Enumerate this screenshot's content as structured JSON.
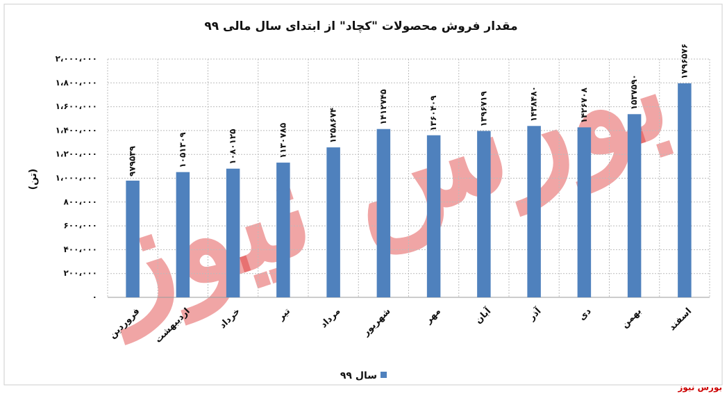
{
  "chart_data": {
    "type": "bar",
    "title": "مقدار فروش محصولات \"کچاد\" از ابتدای سال مالی ۹۹",
    "y_label": "(تن)",
    "categories": [
      "فروردین",
      "اردیبهشت",
      "خرداد",
      "تیر",
      "مرداد",
      "شهریور",
      "مهر",
      "آبان",
      "آذر",
      "دی",
      "بهمن",
      "اسفند"
    ],
    "series": [
      {
        "name": "سال ۹۹",
        "color": "#4f81bd",
        "values": [
          979539,
          1051309,
          1080125,
          1130785,
          1258674,
          1412745,
          1360409,
          1396719,
          1438480,
          1426708,
          1537590,
          1796576
        ],
        "value_labels": [
          "۹۷۹۵۳۹",
          "۱۰۵۱۳۰۹",
          "۱۰۸۰۱۲۵",
          "۱۱۳۰۷۸۵",
          "۱۲۵۸۶۷۴",
          "۱۴۱۲۷۴۵",
          "۱۳۶۰۴۰۹",
          "۱۳۹۶۷۱۹",
          "۱۴۳۸۴۸۰",
          "۱۴۲۶۷۰۸",
          "۱۵۳۷۵۹۰",
          "۱۷۹۶۵۷۶"
        ]
      }
    ],
    "ylim": [
      0,
      2000000
    ],
    "yticks": [
      {
        "value": 0,
        "label": "۰"
      },
      {
        "value": 200000,
        "label": "۲۰۰،۰۰۰"
      },
      {
        "value": 400000,
        "label": "۴۰۰،۰۰۰"
      },
      {
        "value": 600000,
        "label": "۶۰۰،۰۰۰"
      },
      {
        "value": 800000,
        "label": "۸۰۰،۰۰۰"
      },
      {
        "value": 1000000,
        "label": "۱،۰۰۰،۰۰۰"
      },
      {
        "value": 1200000,
        "label": "۱،۲۰۰،۰۰۰"
      },
      {
        "value": 1400000,
        "label": "۱،۴۰۰،۰۰۰"
      },
      {
        "value": 1600000,
        "label": "۱،۶۰۰،۰۰۰"
      },
      {
        "value": 1800000,
        "label": "۱،۸۰۰،۰۰۰"
      },
      {
        "value": 2000000,
        "label": "۲،۰۰۰،۰۰۰"
      }
    ],
    "grid": true,
    "legend": "bottom",
    "watermark": "بورس نیوز"
  }
}
